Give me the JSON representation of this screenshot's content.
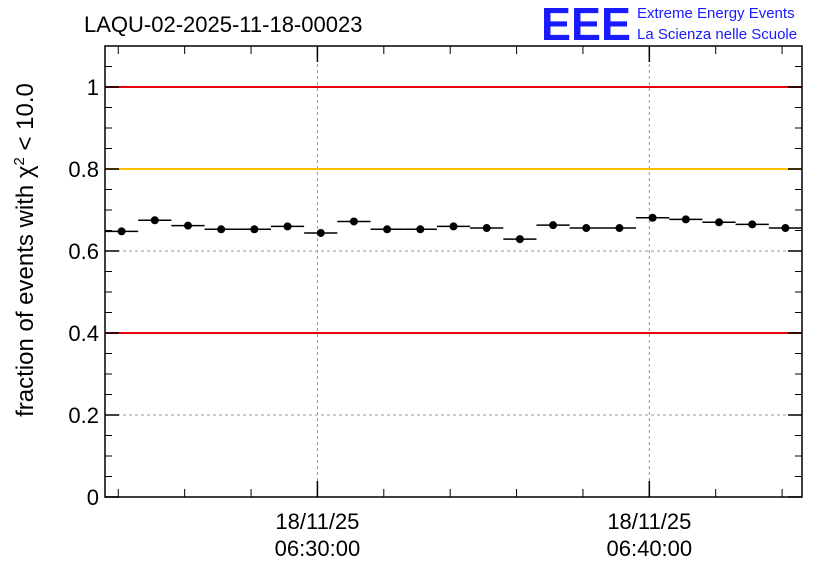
{
  "chart_data": {
    "type": "scatter",
    "title": "LAQU-02-2025-11-18-00023",
    "ylabel_prefix": "fraction of events with ",
    "ylabel_symbol": "χ",
    "ylabel_sup": "2",
    "ylabel_suffix": " < 10.0",
    "xlabel": "",
    "ylim": [
      0,
      1.1
    ],
    "y_ticks": [
      0,
      0.2,
      0.4,
      0.6,
      0.8,
      1
    ],
    "y_tick_labels": [
      "0",
      "0.2",
      "0.4",
      "0.6",
      "0.8",
      "1"
    ],
    "grid": true,
    "xlim_minutes": [
      23.6,
      44.6
    ],
    "x_ticks": [
      {
        "minute": 30,
        "label_date": "18/11/25",
        "label_time": "06:30:00"
      },
      {
        "minute": 40,
        "label_date": "18/11/25",
        "label_time": "06:40:00"
      }
    ],
    "x_minor_tick_step_minutes": 2,
    "x_minor_tick_start_minutes": 24,
    "bin_width_minutes": 1,
    "series": [
      {
        "name": "fraction",
        "x_minutes": [
          24.1,
          25.1,
          26.1,
          27.1,
          28.1,
          29.1,
          30.1,
          31.1,
          32.1,
          33.1,
          34.1,
          35.1,
          36.1,
          37.1,
          38.1,
          39.1,
          40.1,
          41.1,
          42.1,
          43.1,
          44.1
        ],
        "values": [
          0.648,
          0.675,
          0.662,
          0.653,
          0.653,
          0.66,
          0.644,
          0.672,
          0.653,
          0.653,
          0.66,
          0.656,
          0.629,
          0.663,
          0.656,
          0.656,
          0.681,
          0.677,
          0.67,
          0.665,
          0.656
        ]
      }
    ],
    "reference_lines": [
      {
        "y": 1.0,
        "color": "#e8000b"
      },
      {
        "y": 0.8,
        "color": "#ffc000"
      },
      {
        "y": 0.4,
        "color": "#e8000b"
      }
    ]
  },
  "logo": {
    "big": "EEE",
    "line1": "Extreme Energy Events",
    "line2": "La Scienza nelle Scuole"
  },
  "colors": {
    "logo": "#1a1aff",
    "marker": "#000000",
    "grid": "#999999"
  }
}
